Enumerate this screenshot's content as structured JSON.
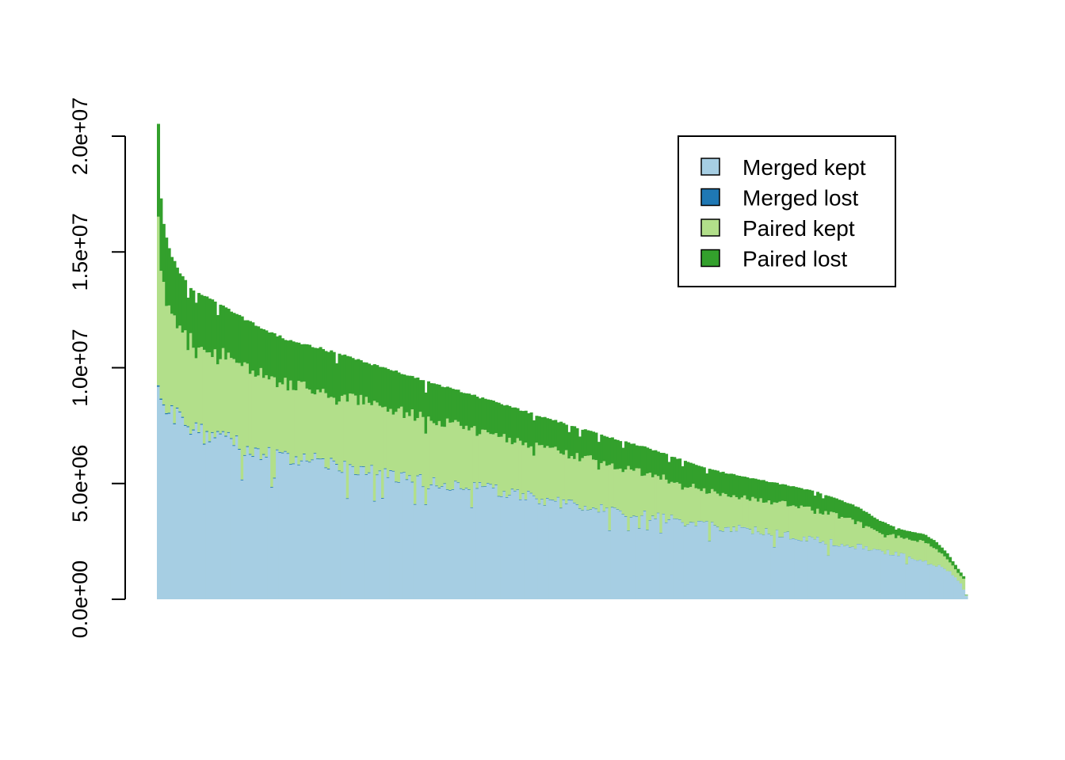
{
  "chart_data": {
    "type": "bar",
    "stacked": true,
    "n_bars": 300,
    "x_tick_labels": "none",
    "ylim": [
      0,
      20000000
    ],
    "y_ticks": [
      0,
      5000000,
      10000000,
      15000000,
      20000000
    ],
    "y_tick_labels": [
      "0.0e+00",
      "5.0e+06",
      "1.0e+07",
      "1.5e+07",
      "2.0e+07"
    ],
    "legend": {
      "position": "top-right",
      "items": [
        {
          "name": "Merged kept",
          "color": "#a6cee3"
        },
        {
          "name": "Merged lost",
          "color": "#1f78b4"
        },
        {
          "name": "Paired kept",
          "color": "#b2df8a"
        },
        {
          "name": "Paired lost",
          "color": "#33a02c"
        }
      ]
    },
    "series_order": [
      "Merged kept",
      "Merged lost",
      "Paired kept",
      "Paired lost"
    ],
    "total_profile": [
      [
        0,
        20500000
      ],
      [
        1,
        18700000
      ],
      [
        2,
        17600000
      ],
      [
        3,
        16800000
      ],
      [
        5,
        16100000
      ],
      [
        8,
        15500000
      ],
      [
        12,
        14800000
      ],
      [
        20,
        14000000
      ],
      [
        30,
        13400000
      ],
      [
        40,
        13100000
      ],
      [
        50,
        12900000
      ],
      [
        60,
        12600000
      ],
      [
        80,
        12000000
      ],
      [
        100,
        11500000
      ],
      [
        120,
        11100000
      ],
      [
        140,
        10900000
      ],
      [
        160,
        10600000
      ],
      [
        180,
        10300000
      ],
      [
        200,
        10000000
      ],
      [
        220,
        9700000
      ],
      [
        240,
        9400000
      ],
      [
        260,
        9100000
      ],
      [
        280,
        8800000
      ],
      [
        300,
        8500000
      ],
      [
        320,
        8200000
      ],
      [
        340,
        7900000
      ],
      [
        360,
        7600000
      ],
      [
        380,
        7300000
      ],
      [
        400,
        7000000
      ],
      [
        430,
        6600000
      ],
      [
        460,
        6100000
      ],
      [
        490,
        5600000
      ],
      [
        520,
        5300000
      ],
      [
        550,
        5000000
      ],
      [
        580,
        4700000
      ],
      [
        600,
        4400000
      ],
      [
        620,
        4000000
      ],
      [
        640,
        3400000
      ],
      [
        660,
        3000000
      ],
      [
        680,
        2800000
      ],
      [
        690,
        2500000
      ],
      [
        700,
        2000000
      ],
      [
        710,
        1300000
      ],
      [
        716,
        900000
      ],
      [
        717,
        200000
      ]
    ],
    "merged_kept_profile": [
      [
        0,
        9400000
      ],
      [
        5,
        8500000
      ],
      [
        10,
        8000000
      ],
      [
        20,
        7700000
      ],
      [
        40,
        7100000
      ],
      [
        60,
        6900000
      ],
      [
        80,
        6400000
      ],
      [
        100,
        6200000
      ],
      [
        120,
        6000000
      ],
      [
        150,
        5900000
      ],
      [
        180,
        5600000
      ],
      [
        220,
        5200000
      ],
      [
        260,
        4900000
      ],
      [
        300,
        4700000
      ],
      [
        340,
        4300000
      ],
      [
        380,
        4000000
      ],
      [
        420,
        3700000
      ],
      [
        460,
        3400000
      ],
      [
        500,
        3100000
      ],
      [
        540,
        2900000
      ],
      [
        580,
        2600000
      ],
      [
        620,
        2300000
      ],
      [
        660,
        1900000
      ],
      [
        690,
        1500000
      ],
      [
        705,
        1100000
      ],
      [
        712,
        700000
      ],
      [
        717,
        200000
      ]
    ],
    "paired_lost_fraction_approx": 0.17
  }
}
